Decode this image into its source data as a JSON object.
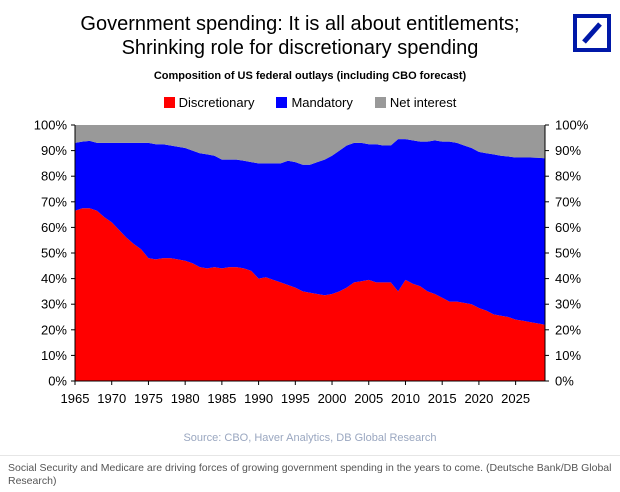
{
  "title_line1": "Government spending: It is all about entitlements;",
  "title_line2": "Shrinking role for discretionary spending",
  "subtitle": "Composition of US federal outlays (including CBO forecast)",
  "source": "Source: CBO, Haver Analytics, DB Global Research",
  "caption": "Social Security and Medicare are driving forces of growing government spending in the years to come. (Deutsche Bank/DB Global Research)",
  "logo_icon": "deutsche-bank-logo",
  "colors": {
    "discretionary": "#ff0000",
    "mandatory": "#0000ff",
    "net_interest": "#999999",
    "logo": "#0018a8"
  },
  "chart_data": {
    "type": "area",
    "stacked": true,
    "legend_position": "top",
    "grid": false,
    "ylim": [
      0,
      100
    ],
    "xlim": [
      1965,
      2029
    ],
    "y_ticks_left": [
      "0%",
      "10%",
      "20%",
      "30%",
      "40%",
      "50%",
      "60%",
      "70%",
      "80%",
      "90%",
      "100%"
    ],
    "y_ticks_right": [
      "0%",
      "10%",
      "20%",
      "30%",
      "40%",
      "50%",
      "60%",
      "70%",
      "80%",
      "90%",
      "100%"
    ],
    "x_ticks": [
      "1965",
      "1970",
      "1975",
      "1980",
      "1985",
      "1990",
      "1995",
      "2000",
      "2005",
      "2010",
      "2015",
      "2020",
      "2025"
    ],
    "x": [
      1965,
      1966,
      1967,
      1968,
      1969,
      1970,
      1971,
      1972,
      1973,
      1974,
      1975,
      1976,
      1977,
      1978,
      1979,
      1980,
      1981,
      1982,
      1983,
      1984,
      1985,
      1986,
      1987,
      1988,
      1989,
      1990,
      1991,
      1992,
      1993,
      1994,
      1995,
      1996,
      1997,
      1998,
      1999,
      2000,
      2001,
      2002,
      2003,
      2004,
      2005,
      2006,
      2007,
      2008,
      2009,
      2010,
      2011,
      2012,
      2013,
      2014,
      2015,
      2016,
      2017,
      2018,
      2019,
      2020,
      2021,
      2022,
      2023,
      2024,
      2025,
      2026,
      2027,
      2028,
      2029
    ],
    "series": [
      {
        "name": "Discretionary",
        "values": [
          66.5,
          67.5,
          67.5,
          66.5,
          64.0,
          62.0,
          59.0,
          56.0,
          53.5,
          51.5,
          48.0,
          47.5,
          48.0,
          48.0,
          47.5,
          47.0,
          46.0,
          44.5,
          44.0,
          44.5,
          44.0,
          44.5,
          44.5,
          44.0,
          43.0,
          40.0,
          40.5,
          39.5,
          38.5,
          37.5,
          36.5,
          35.0,
          34.5,
          34.0,
          33.5,
          34.0,
          35.0,
          36.5,
          38.5,
          39.0,
          39.5,
          38.5,
          38.5,
          38.5,
          35.0,
          39.5,
          38.0,
          37.0,
          35.0,
          34.0,
          32.5,
          31.0,
          31.0,
          30.5,
          30.0,
          28.5,
          27.5,
          26.0,
          25.5,
          25.0,
          24.0,
          23.5,
          23.0,
          22.5,
          22.0
        ]
      },
      {
        "name": "Mandatory",
        "values": [
          26.5,
          26.0,
          26.3,
          26.5,
          29.0,
          31.0,
          34.0,
          37.0,
          39.5,
          41.5,
          45.0,
          45.0,
          44.5,
          44.0,
          44.0,
          44.0,
          44.0,
          44.5,
          44.5,
          43.5,
          42.5,
          42.0,
          42.0,
          42.0,
          42.5,
          45.0,
          44.5,
          45.5,
          46.5,
          48.5,
          49.0,
          49.5,
          50.0,
          51.5,
          53.0,
          54.0,
          55.0,
          55.5,
          54.5,
          54.0,
          53.0,
          54.0,
          53.5,
          53.5,
          59.5,
          55.0,
          56.0,
          56.5,
          58.5,
          60.0,
          61.0,
          62.5,
          62.0,
          61.5,
          61.0,
          61.0,
          61.5,
          62.5,
          62.5,
          62.7,
          63.3,
          63.8,
          64.3,
          64.7,
          65.0
        ]
      },
      {
        "name": "Net interest",
        "values": [
          7.0,
          6.5,
          6.2,
          7.0,
          7.0,
          7.0,
          7.0,
          7.0,
          7.0,
          7.0,
          7.0,
          7.5,
          7.5,
          8.0,
          8.5,
          9.0,
          10.0,
          11.0,
          11.5,
          12.0,
          13.5,
          13.5,
          13.5,
          14.0,
          14.5,
          15.0,
          15.0,
          15.0,
          15.0,
          14.0,
          14.5,
          15.5,
          15.5,
          14.5,
          13.5,
          12.0,
          10.0,
          8.0,
          7.0,
          7.0,
          7.5,
          7.5,
          8.0,
          8.0,
          5.5,
          5.5,
          6.0,
          6.5,
          6.5,
          6.0,
          6.5,
          6.5,
          7.0,
          8.0,
          9.0,
          10.5,
          11.0,
          11.5,
          12.0,
          12.3,
          12.7,
          12.7,
          12.7,
          12.8,
          13.0
        ]
      }
    ]
  }
}
